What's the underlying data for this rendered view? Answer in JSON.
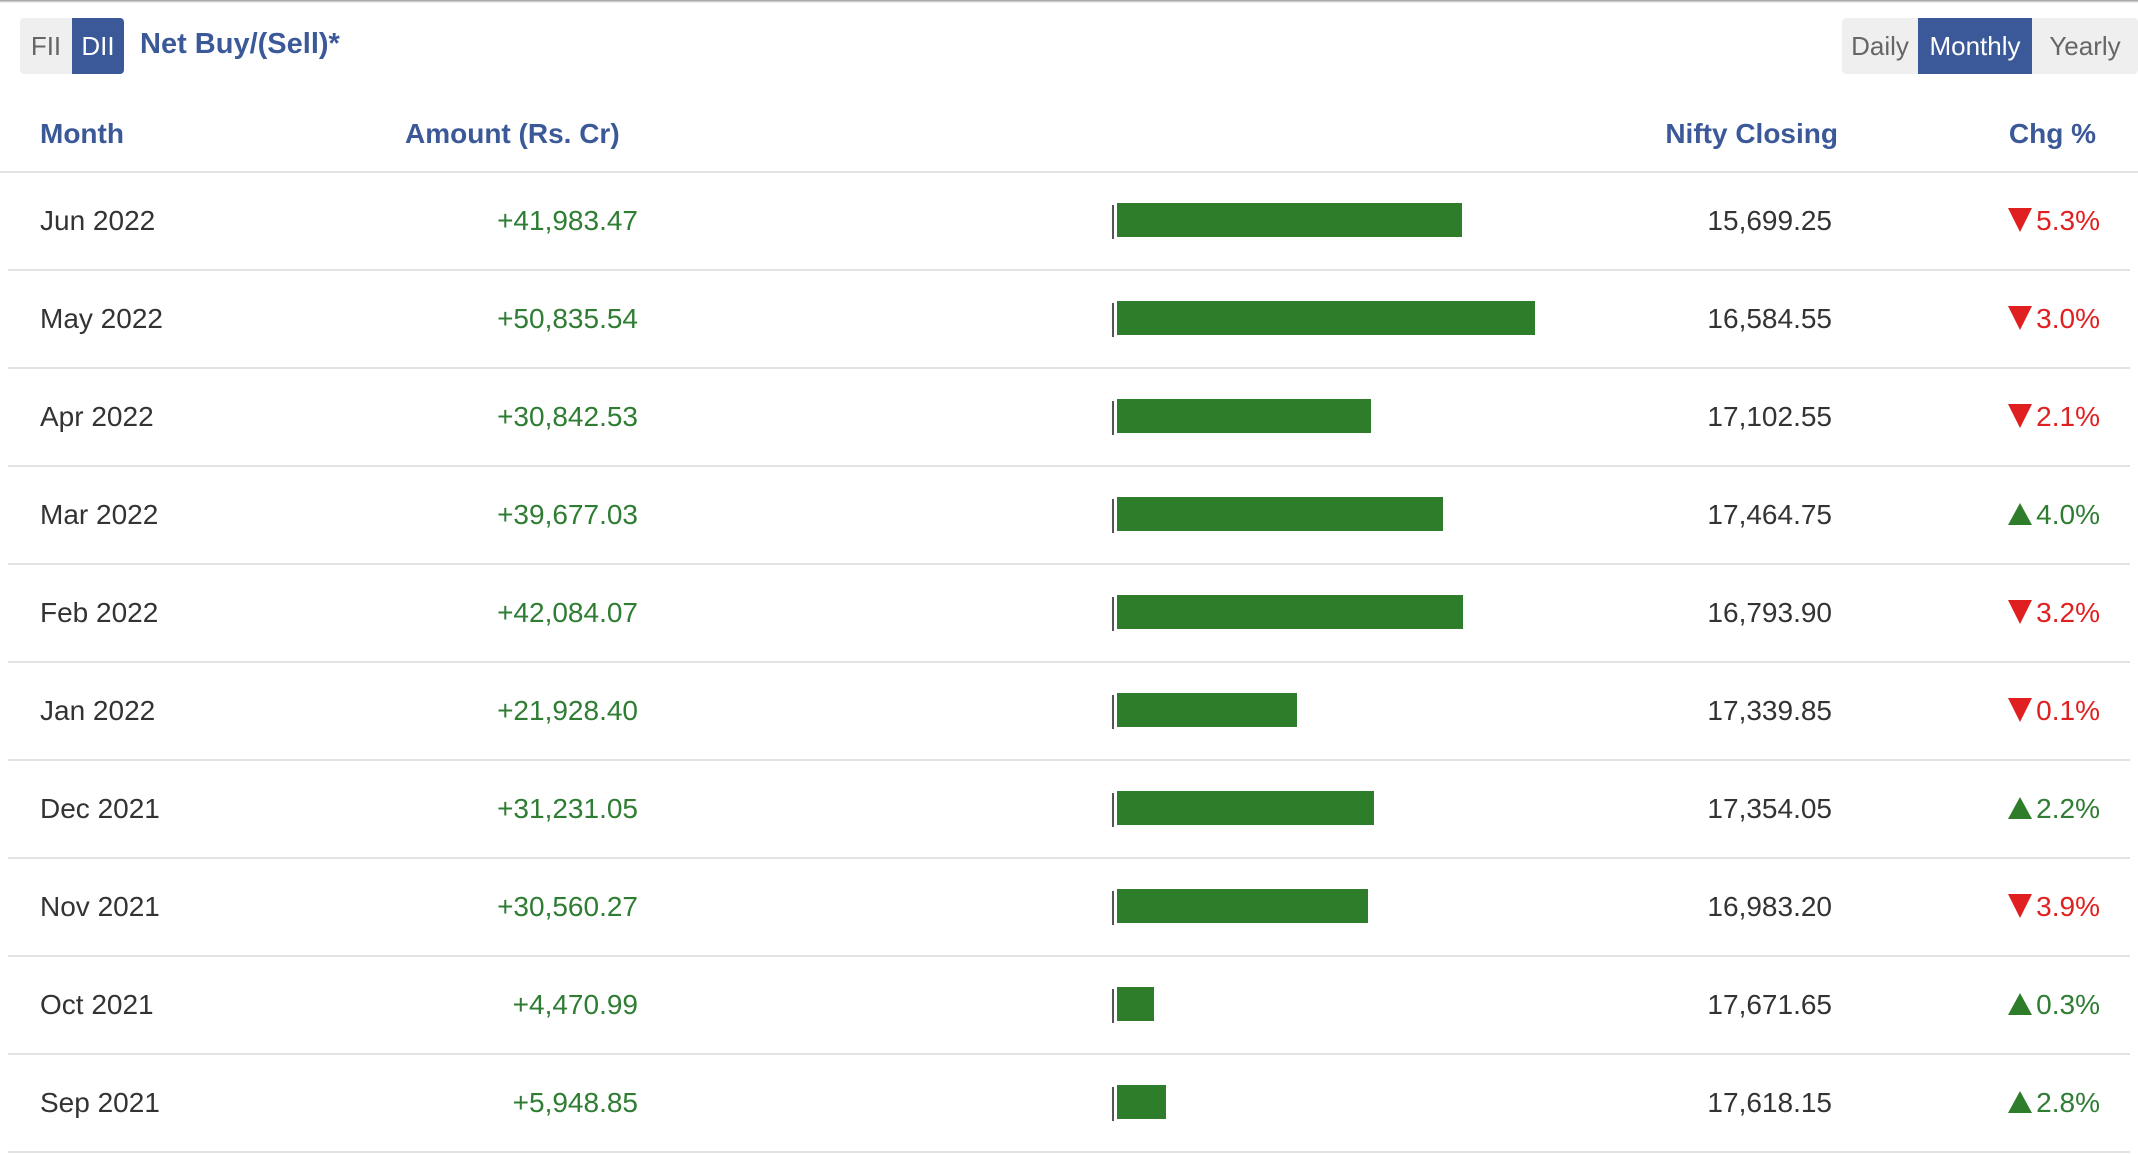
{
  "toggle_investor": {
    "options": [
      "FII",
      "DII"
    ],
    "selected": "DII"
  },
  "view_title": "Net Buy/(Sell)*",
  "toggle_period": {
    "options": [
      "Daily",
      "Monthly",
      "Yearly"
    ],
    "selected": "Monthly"
  },
  "columns": {
    "month": "Month",
    "amount": "Amount (Rs. Cr)",
    "nifty": "Nifty Closing",
    "chg": "Chg %"
  },
  "colors": {
    "accent": "#3b5998",
    "positive": "#2e7d32",
    "negative": "#e02020",
    "bar": "#2e7d2a"
  },
  "bar_max_value": 50835.54,
  "rows": [
    {
      "month": "Jun 2022",
      "amount": "+41,983.47",
      "value": 41983.47,
      "nifty": "15,699.25",
      "chg": "5.3%",
      "dir": "down"
    },
    {
      "month": "May 2022",
      "amount": "+50,835.54",
      "value": 50835.54,
      "nifty": "16,584.55",
      "chg": "3.0%",
      "dir": "down"
    },
    {
      "month": "Apr 2022",
      "amount": "+30,842.53",
      "value": 30842.53,
      "nifty": "17,102.55",
      "chg": "2.1%",
      "dir": "down"
    },
    {
      "month": "Mar 2022",
      "amount": "+39,677.03",
      "value": 39677.03,
      "nifty": "17,464.75",
      "chg": "4.0%",
      "dir": "up"
    },
    {
      "month": "Feb 2022",
      "amount": "+42,084.07",
      "value": 42084.07,
      "nifty": "16,793.90",
      "chg": "3.2%",
      "dir": "down"
    },
    {
      "month": "Jan 2022",
      "amount": "+21,928.40",
      "value": 21928.4,
      "nifty": "17,339.85",
      "chg": "0.1%",
      "dir": "down"
    },
    {
      "month": "Dec 2021",
      "amount": "+31,231.05",
      "value": 31231.05,
      "nifty": "17,354.05",
      "chg": "2.2%",
      "dir": "up"
    },
    {
      "month": "Nov 2021",
      "amount": "+30,560.27",
      "value": 30560.27,
      "nifty": "16,983.20",
      "chg": "3.9%",
      "dir": "down"
    },
    {
      "month": "Oct 2021",
      "amount": "+4,470.99",
      "value": 4470.99,
      "nifty": "17,671.65",
      "chg": "0.3%",
      "dir": "up"
    },
    {
      "month": "Sep 2021",
      "amount": "+5,948.85",
      "value": 5948.85,
      "nifty": "17,618.15",
      "chg": "2.8%",
      "dir": "up"
    }
  ]
}
